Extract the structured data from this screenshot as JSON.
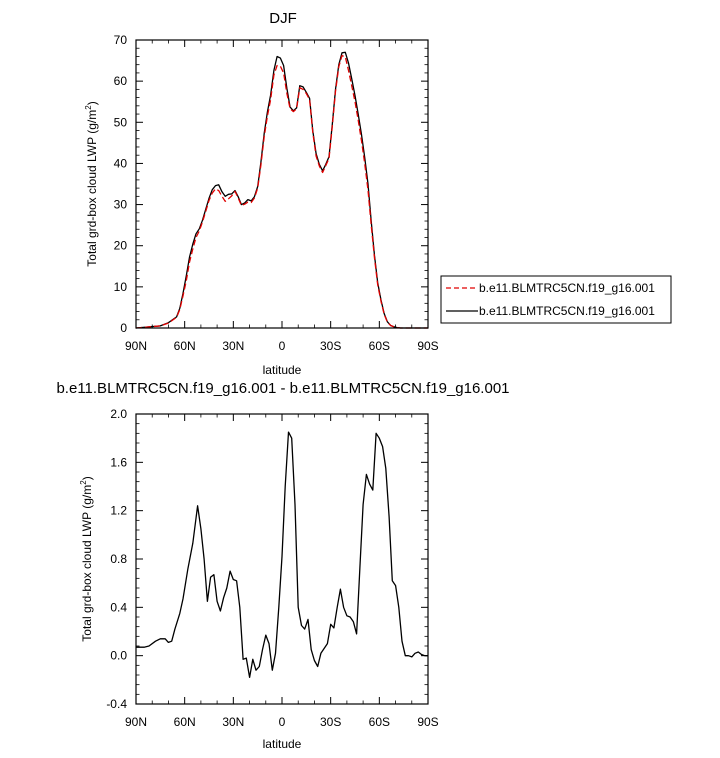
{
  "chart_data": [
    {
      "type": "line",
      "title": "DJF",
      "xlabel": "latitude",
      "ylabel": "Total grd-box cloud LWP (g/m²)",
      "ylabel_main": "Total grd-box cloud LWP (g/m",
      "ylabel_sup": "2",
      "ylabel_tail": ")",
      "xlim": [
        90,
        -90
      ],
      "ylim": [
        0,
        70
      ],
      "xticks": [
        90,
        60,
        30,
        0,
        -30,
        -60,
        -90
      ],
      "xtick_labels": [
        "90N",
        "60N",
        "30N",
        "0",
        "30S",
        "60S",
        "90S"
      ],
      "yticks": [
        0,
        10,
        20,
        30,
        40,
        50,
        60,
        70
      ],
      "ytick_labels": [
        "0",
        "10",
        "20",
        "30",
        "40",
        "50",
        "60",
        "70"
      ],
      "legend_position": "right",
      "x": [
        90,
        75,
        70,
        65,
        63,
        61,
        59,
        57,
        55,
        53,
        51,
        49,
        47,
        45,
        43,
        41,
        39,
        37,
        35,
        33,
        31,
        29,
        27,
        25,
        23,
        21,
        19,
        17,
        15,
        13,
        11,
        9,
        7,
        5,
        3,
        1,
        -1,
        -3,
        -5,
        -7,
        -9,
        -11,
        -13,
        -15,
        -17,
        -19,
        -21,
        -23,
        -25,
        -27,
        -29,
        -31,
        -33,
        -35,
        -37,
        -39,
        -41,
        -43,
        -45,
        -47,
        -49,
        -51,
        -53,
        -55,
        -57,
        -59,
        -61,
        -63,
        -65,
        -67,
        -69,
        -71,
        -73,
        -75,
        -77,
        -79,
        -81,
        -83,
        -85,
        -87,
        -90
      ],
      "series": [
        {
          "name": "b.e11.BLMTRC5CN.f19_g16.001",
          "color": "#e00000",
          "dash": "dashed",
          "values": [
            0.0,
            0.5,
            1.2,
            2.6,
            4.5,
            7.8,
            11.5,
            16.0,
            19.2,
            22.0,
            23.6,
            25.8,
            28.4,
            31.0,
            32.8,
            33.8,
            33.4,
            32.0,
            30.8,
            31.4,
            32.1,
            33.2,
            31.6,
            29.8,
            30.1,
            30.6,
            30.5,
            31.6,
            34.0,
            39.6,
            46.5,
            51.5,
            55.5,
            61.5,
            63.8,
            63.6,
            62.0,
            57.0,
            53.3,
            52.6,
            53.3,
            58.4,
            58.0,
            57.0,
            55.5,
            47.5,
            41.8,
            39.4,
            37.8,
            39.5,
            41.2,
            49.0,
            57.5,
            63.5,
            66.2,
            65.9,
            62.6,
            58.8,
            55.0,
            50.5,
            45.5,
            40.0,
            33.5,
            25.0,
            17.0,
            10.5,
            6.5,
            3.3,
            1.4,
            0.6,
            0.3,
            0.1,
            0.0,
            0.0,
            0.0,
            0.0,
            0.0,
            0.0,
            0.0,
            0.0,
            0.0
          ]
        },
        {
          "name": "b.e11.BLMTRC5CN.f19_g16.001",
          "color": "#000000",
          "dash": "solid",
          "values": [
            0.0,
            0.5,
            1.3,
            2.7,
            4.8,
            8.4,
            12.7,
            17.2,
            20.4,
            22.9,
            24.1,
            26.2,
            28.9,
            31.5,
            33.6,
            34.6,
            34.8,
            33.1,
            32.0,
            32.5,
            32.6,
            33.4,
            31.9,
            30.0,
            30.4,
            31.2,
            30.9,
            31.9,
            34.4,
            40.3,
            47.3,
            52.5,
            56.6,
            62.6,
            66.0,
            65.6,
            63.8,
            58.2,
            53.7,
            52.8,
            53.5,
            58.9,
            58.6,
            57.3,
            55.8,
            47.9,
            42.4,
            39.8,
            38.2,
            39.8,
            41.6,
            49.5,
            58.0,
            64.0,
            66.9,
            67.0,
            64.4,
            60.5,
            56.5,
            52.0,
            47.0,
            41.5,
            35.0,
            26.0,
            17.6,
            11.0,
            6.8,
            3.5,
            1.5,
            0.6,
            0.3,
            0.1,
            0.0,
            0.0,
            0.0,
            0.0,
            0.0,
            0.0,
            0.0,
            0.0,
            0.0
          ]
        }
      ]
    },
    {
      "type": "line",
      "title": "b.e11.BLMTRC5CN.f19_g16.001 - b.e11.BLMTRC5CN.f19_g16.001",
      "xlabel": "latitude",
      "ylabel": "Total grd-box cloud LWP (g/m²)",
      "ylabel_main": "Total grd-box cloud LWP (g/m",
      "ylabel_sup": "2",
      "ylabel_tail": ")",
      "xlim": [
        90,
        -90
      ],
      "ylim": [
        -0.4,
        2.0
      ],
      "xticks": [
        90,
        60,
        30,
        0,
        -30,
        -60,
        -90
      ],
      "xtick_labels": [
        "90N",
        "60N",
        "30N",
        "0",
        "30S",
        "60S",
        "90S"
      ],
      "yticks": [
        -0.4,
        0.0,
        0.4,
        0.8,
        1.2,
        1.6,
        2.0
      ],
      "ytick_labels": [
        "-0.4",
        "0.0",
        "0.4",
        "0.8",
        "1.2",
        "1.6",
        "2.0"
      ],
      "x": [
        90,
        85,
        82,
        78,
        75,
        72,
        70,
        68,
        66,
        63,
        61,
        58,
        55,
        52,
        50,
        48,
        46,
        44,
        42,
        40,
        38,
        36,
        34,
        32,
        30,
        28,
        26,
        24,
        22,
        20,
        18,
        16,
        14,
        12,
        10,
        8,
        6,
        4,
        2,
        0,
        -2,
        -4,
        -6,
        -8,
        -10,
        -12,
        -14,
        -16,
        -18,
        -20,
        -22,
        -24,
        -26,
        -28,
        -30,
        -32,
        -34,
        -36,
        -38,
        -40,
        -42,
        -44,
        -46,
        -48,
        -50,
        -52,
        -54,
        -56,
        -58,
        -60,
        -62,
        -64,
        -66,
        -68,
        -70,
        -72,
        -74,
        -76,
        -78,
        -80,
        -82,
        -84,
        -86,
        -88,
        -90
      ],
      "series": [
        {
          "name": "",
          "color": "#000000",
          "dash": "solid",
          "values": [
            0.07,
            0.07,
            0.08,
            0.12,
            0.14,
            0.14,
            0.11,
            0.12,
            0.22,
            0.35,
            0.47,
            0.72,
            0.93,
            1.24,
            1.05,
            0.8,
            0.45,
            0.65,
            0.67,
            0.45,
            0.37,
            0.48,
            0.56,
            0.7,
            0.63,
            0.62,
            0.4,
            -0.03,
            -0.02,
            -0.18,
            -0.03,
            -0.12,
            -0.09,
            0.05,
            0.17,
            0.1,
            -0.12,
            0.02,
            0.4,
            0.82,
            1.4,
            1.85,
            1.8,
            1.25,
            0.4,
            0.25,
            0.22,
            0.3,
            0.05,
            -0.04,
            -0.09,
            0.02,
            0.06,
            0.1,
            0.26,
            0.23,
            0.4,
            0.55,
            0.4,
            0.33,
            0.32,
            0.28,
            0.18,
            0.73,
            1.25,
            1.5,
            1.42,
            1.37,
            1.84,
            1.8,
            1.73,
            1.55,
            1.15,
            0.62,
            0.58,
            0.4,
            0.12,
            0.0,
            0.0,
            -0.01,
            0.02,
            0.03,
            0.01,
            0.0,
            0.0
          ]
        }
      ]
    }
  ]
}
